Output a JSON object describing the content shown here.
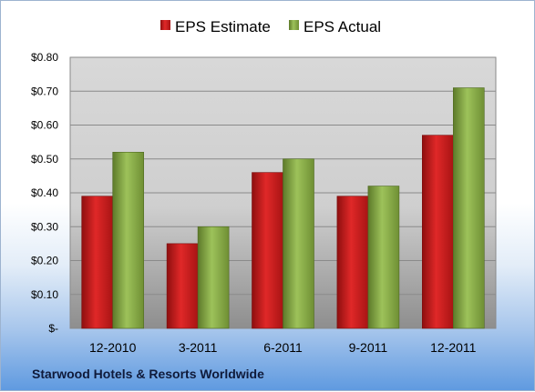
{
  "chart_data": {
    "type": "bar",
    "categories": [
      "12-2010",
      "3-2011",
      "6-2011",
      "9-2011",
      "12-2011"
    ],
    "series": [
      {
        "name": "EPS Estimate",
        "values": [
          0.39,
          0.25,
          0.46,
          0.39,
          0.57
        ],
        "color": "#d01c1c"
      },
      {
        "name": "EPS Actual",
        "values": [
          0.52,
          0.3,
          0.5,
          0.42,
          0.71
        ],
        "color": "#8cb14a"
      }
    ],
    "ylim": [
      0,
      0.8
    ],
    "yticks": [
      0,
      0.1,
      0.2,
      0.3,
      0.4,
      0.5,
      0.6,
      0.7,
      0.8
    ],
    "ytick_labels": [
      "$-",
      "$0.10",
      "$0.20",
      "$0.30",
      "$0.40",
      "$0.50",
      "$0.60",
      "$0.70",
      "$0.80"
    ],
    "grid": true,
    "legend_position": "top-center",
    "footer": "Starwood Hotels & Resorts Worldwide"
  }
}
